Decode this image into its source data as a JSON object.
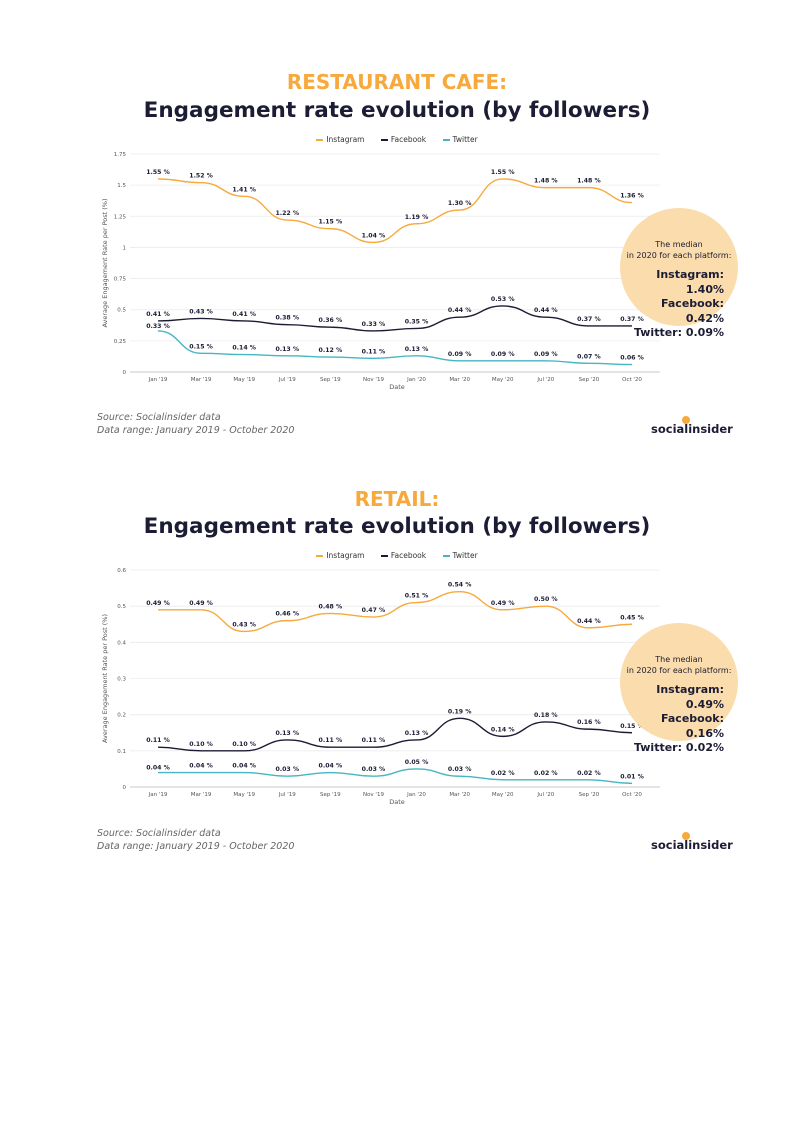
{
  "colors": {
    "instagram": "#f7a93b",
    "facebook": "#1c1c34",
    "twitter": "#47b6c3",
    "title_accent": "#f7a93b",
    "median_bg": "#fbdcac"
  },
  "chart_data": [
    {
      "type": "line",
      "heading": "RESTAURANT CAFE:",
      "title": "Engagement rate evolution (by followers)",
      "xlabel": "Date",
      "ylabel": "Average Engagement Rate per Post (%)",
      "categories": [
        "Jan '19",
        "Mar '19",
        "May '19",
        "Jul '19",
        "Sep '19",
        "Nov '19",
        "Jan '20",
        "Mar '20",
        "May '20",
        "Jul '20",
        "Sep '20",
        "Oct '20"
      ],
      "yticks": [
        "0",
        "0.25",
        "0.5",
        "0.75",
        "1",
        "1.25",
        "1.5",
        "1.75"
      ],
      "ylim": [
        0,
        1.75
      ],
      "series": [
        {
          "name": "Instagram",
          "values": [
            1.55,
            1.52,
            1.41,
            1.22,
            1.15,
            1.04,
            1.19,
            1.3,
            1.55,
            1.48,
            1.48,
            1.36
          ],
          "labels": [
            "1.55 %",
            "1.52 %",
            "1.41 %",
            "1.22 %",
            "1.15 %",
            "1.04 %",
            "1.19 %",
            "1.30 %",
            "1.55 %",
            "1.48 %",
            "1.48 %",
            "1.36 %"
          ]
        },
        {
          "name": "Facebook",
          "values": [
            0.41,
            0.43,
            0.41,
            0.38,
            0.36,
            0.33,
            0.35,
            0.44,
            0.53,
            0.44,
            0.37,
            0.37
          ],
          "labels": [
            "0.41 %",
            "0.43 %",
            "0.41 %",
            "0.38 %",
            "0.36 %",
            "0.33 %",
            "0.35 %",
            "0.44 %",
            "0.53 %",
            "0.44 %",
            "0.37 %",
            "0.37 %"
          ]
        },
        {
          "name": "Twitter",
          "values": [
            0.33,
            0.15,
            0.14,
            0.13,
            0.12,
            0.11,
            0.13,
            0.09,
            0.09,
            0.09,
            0.07,
            0.06
          ],
          "labels": [
            "0.33 %",
            "0.15 %",
            "0.14 %",
            "0.13 %",
            "0.12 %",
            "0.11 %",
            "0.13 %",
            "0.09 %",
            "0.09 %",
            "0.09 %",
            "0.07 %",
            "0.06 %"
          ]
        }
      ],
      "median": {
        "caption_line1": "The median",
        "caption_line2": "in 2020 for each platform:",
        "instagram": "Instagram: 1.40%",
        "facebook": "Facebook: 0.42%",
        "twitter": "Twitter: 0.09%"
      },
      "source": "Source: Socialinsider data",
      "range": "Data range: January 2019 - October 2020"
    },
    {
      "type": "line",
      "heading": "RETAIL:",
      "title": "Engagement rate evolution (by followers)",
      "xlabel": "Date",
      "ylabel": "Average Engagement Rate per Post (%)",
      "categories": [
        "Jan '19",
        "Mar '19",
        "May '19",
        "Jul '19",
        "Sep '19",
        "Nov '19",
        "Jan '20",
        "Mar '20",
        "May '20",
        "Jul '20",
        "Sep '20",
        "Oct '20"
      ],
      "yticks": [
        "0",
        "0.1",
        "0.2",
        "0.3",
        "0.4",
        "0.5",
        "0.6"
      ],
      "ylim": [
        0,
        0.6
      ],
      "series": [
        {
          "name": "Instagram",
          "values": [
            0.49,
            0.49,
            0.43,
            0.46,
            0.48,
            0.47,
            0.51,
            0.54,
            0.49,
            0.5,
            0.44,
            0.45
          ],
          "labels": [
            "0.49 %",
            "0.49 %",
            "0.43 %",
            "0.46 %",
            "0.48 %",
            "0.47 %",
            "0.51 %",
            "0.54 %",
            "0.49 %",
            "0.50 %",
            "0.44 %",
            "0.45 %"
          ]
        },
        {
          "name": "Facebook",
          "values": [
            0.11,
            0.1,
            0.1,
            0.13,
            0.11,
            0.11,
            0.13,
            0.19,
            0.14,
            0.18,
            0.16,
            0.15
          ],
          "labels": [
            "0.11 %",
            "0.10 %",
            "0.10 %",
            "0.13 %",
            "0.11 %",
            "0.11 %",
            "0.13 %",
            "0.19 %",
            "0.14 %",
            "0.18 %",
            "0.16 %",
            "0.15 %"
          ]
        },
        {
          "name": "Twitter",
          "values": [
            0.04,
            0.04,
            0.04,
            0.03,
            0.04,
            0.03,
            0.05,
            0.03,
            0.02,
            0.02,
            0.02,
            0.01
          ],
          "labels": [
            "0.04 %",
            "0.04 %",
            "0.04 %",
            "0.03 %",
            "0.04 %",
            "0.03 %",
            "0.05 %",
            "0.03 %",
            "0.02 %",
            "0.02 %",
            "0.02 %",
            "0.01 %"
          ]
        }
      ],
      "median": {
        "caption_line1": "The median",
        "caption_line2": "in 2020 for each platform:",
        "instagram": "Instagram: 0.49%",
        "facebook": "Facebook: 0.16%",
        "twitter": "Twitter: 0.02%"
      },
      "source": "Source: Socialinsider data",
      "range": "Data range: January 2019 - October 2020"
    }
  ],
  "logo": {
    "text": "socialinsider"
  }
}
